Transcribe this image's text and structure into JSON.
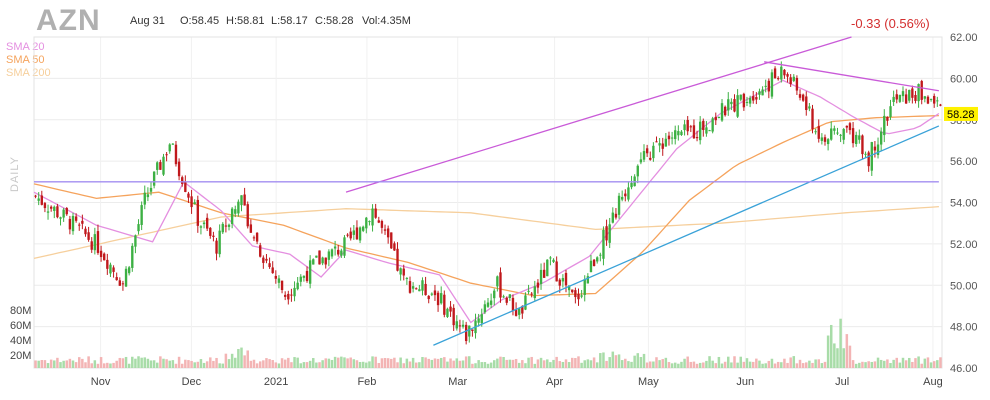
{
  "header": {
    "ticker": "AZN",
    "date": "Aug 31",
    "open": "O:58.45",
    "high": "H:58.81",
    "low": "L:58.17",
    "close": "C:58.28",
    "volume": "Vol:4.35M",
    "change": "-0.33 (0.56%)",
    "change_color": "#d32f2f"
  },
  "legend": [
    {
      "label": "SMA 20",
      "color": "#e48fe0"
    },
    {
      "label": "SMA 50",
      "color": "#f5a35c"
    },
    {
      "label": "SMA 200",
      "color": "#f6cf9c"
    }
  ],
  "side_label": "DAILY",
  "volume_labels": [
    "80M",
    "60M",
    "40M",
    "20M"
  ],
  "chart_data": {
    "type": "candlestick",
    "y_ticks": [
      62,
      60,
      58,
      56,
      54,
      52,
      50,
      48,
      46
    ],
    "ylim": [
      46,
      62
    ],
    "x_ticks": [
      "Nov",
      "Dec",
      "2021",
      "Feb",
      "Mar",
      "Apr",
      "May",
      "Jun",
      "Jul",
      "Aug"
    ],
    "last_price": "58.28",
    "last_price_bg": "#fff200",
    "up_color": "#3cb043",
    "down_color": "#c0181c",
    "anchors": [
      [
        0,
        54.3
      ],
      [
        10,
        53.2
      ],
      [
        20,
        51.9
      ],
      [
        28,
        50.1
      ],
      [
        35,
        54.1
      ],
      [
        43,
        56.9
      ],
      [
        52,
        53.2
      ],
      [
        58,
        51.9
      ],
      [
        65,
        54.4
      ],
      [
        72,
        51.7
      ],
      [
        80,
        49.6
      ],
      [
        90,
        51.1
      ],
      [
        100,
        52.0
      ],
      [
        108,
        53.7
      ],
      [
        118,
        50.2
      ],
      [
        128,
        49.6
      ],
      [
        138,
        47.6
      ],
      [
        148,
        50.0
      ],
      [
        155,
        48.6
      ],
      [
        165,
        51.1
      ],
      [
        173,
        49.2
      ],
      [
        183,
        52.6
      ],
      [
        192,
        55.6
      ],
      [
        202,
        57.1
      ],
      [
        212,
        57.5
      ],
      [
        222,
        58.6
      ],
      [
        232,
        59.5
      ],
      [
        240,
        60.3
      ],
      [
        245,
        59.2
      ],
      [
        252,
        56.9
      ],
      [
        260,
        57.6
      ],
      [
        267,
        56.2
      ],
      [
        275,
        58.9
      ],
      [
        283,
        59.3
      ],
      [
        290,
        58.6
      ]
    ],
    "sma20": [
      [
        0,
        54.5
      ],
      [
        20,
        52.9
      ],
      [
        38,
        52.1
      ],
      [
        48,
        55.0
      ],
      [
        60,
        53.6
      ],
      [
        70,
        51.9
      ],
      [
        82,
        51.5
      ],
      [
        92,
        50.4
      ],
      [
        100,
        51.7
      ],
      [
        113,
        51.1
      ],
      [
        130,
        50.5
      ],
      [
        140,
        48.2
      ],
      [
        150,
        49.3
      ],
      [
        163,
        50.1
      ],
      [
        178,
        51.4
      ],
      [
        192,
        54.0
      ],
      [
        206,
        56.6
      ],
      [
        220,
        58.3
      ],
      [
        240,
        59.9
      ],
      [
        252,
        59.1
      ],
      [
        263,
        58.1
      ],
      [
        273,
        57.3
      ],
      [
        283,
        57.6
      ],
      [
        290,
        58.3
      ]
    ],
    "sma50": [
      [
        0,
        54.9
      ],
      [
        20,
        54.2
      ],
      [
        40,
        54.5
      ],
      [
        60,
        53.5
      ],
      [
        80,
        52.9
      ],
      [
        100,
        51.8
      ],
      [
        120,
        51.1
      ],
      [
        140,
        50.1
      ],
      [
        160,
        49.5
      ],
      [
        180,
        49.6
      ],
      [
        195,
        51.6
      ],
      [
        210,
        54.1
      ],
      [
        225,
        55.8
      ],
      [
        240,
        56.9
      ],
      [
        255,
        57.9
      ],
      [
        270,
        58.1
      ],
      [
        290,
        58.2
      ]
    ],
    "sma200": [
      [
        0,
        51.3
      ],
      [
        30,
        52.3
      ],
      [
        60,
        53.3
      ],
      [
        100,
        53.7
      ],
      [
        140,
        53.5
      ],
      [
        180,
        52.7
      ],
      [
        220,
        53.0
      ],
      [
        260,
        53.5
      ],
      [
        290,
        53.8
      ]
    ],
    "trendlines": [
      {
        "color": "#c95ad8",
        "points": [
          [
            100,
            54.5
          ],
          [
            262,
            62.0
          ]
        ]
      },
      {
        "color": "#c95ad8",
        "points": [
          [
            234,
            60.8
          ],
          [
            290,
            59.4
          ]
        ]
      },
      {
        "color": "#3aa2d8",
        "points": [
          [
            128,
            47.1
          ],
          [
            290,
            57.7
          ]
        ]
      },
      {
        "color": "#a38ef0",
        "points": [
          [
            0,
            55.0
          ],
          [
            290,
            55.0
          ]
        ]
      }
    ]
  }
}
